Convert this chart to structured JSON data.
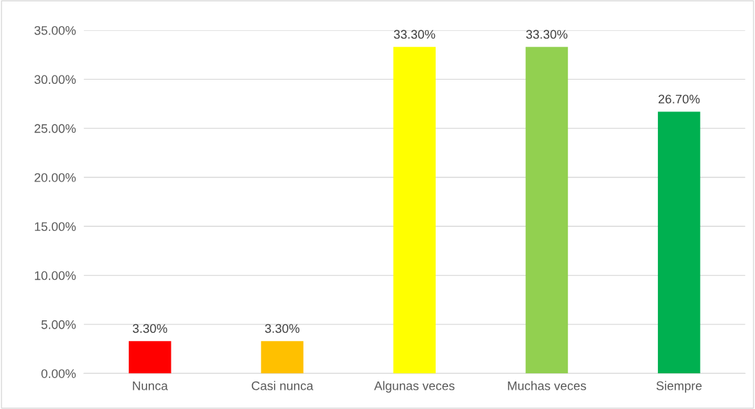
{
  "chart_data": {
    "type": "bar",
    "categories": [
      "Nunca",
      "Casi nunca",
      "Algunas veces",
      "Muchas veces",
      "Siempre"
    ],
    "values": [
      3.3,
      3.3,
      33.3,
      33.3,
      26.7
    ],
    "colors": [
      "#ff0000",
      "#ffc000",
      "#ffff00",
      "#92d050",
      "#00b050"
    ],
    "value_labels": [
      "3.30%",
      "3.30%",
      "33.30%",
      "33.30%",
      "26.70%"
    ],
    "ylim": [
      0,
      35
    ],
    "yticks": [
      {
        "value": 0,
        "label": "0.00%"
      },
      {
        "value": 5,
        "label": "5.00%"
      },
      {
        "value": 10,
        "label": "10.00%"
      },
      {
        "value": 15,
        "label": "15.00%"
      },
      {
        "value": 20,
        "label": "20.00%"
      },
      {
        "value": 25,
        "label": "25.00%"
      },
      {
        "value": 30,
        "label": "30.00%"
      },
      {
        "value": 35,
        "label": "35.00%"
      }
    ],
    "grid": "y",
    "legend": false
  }
}
